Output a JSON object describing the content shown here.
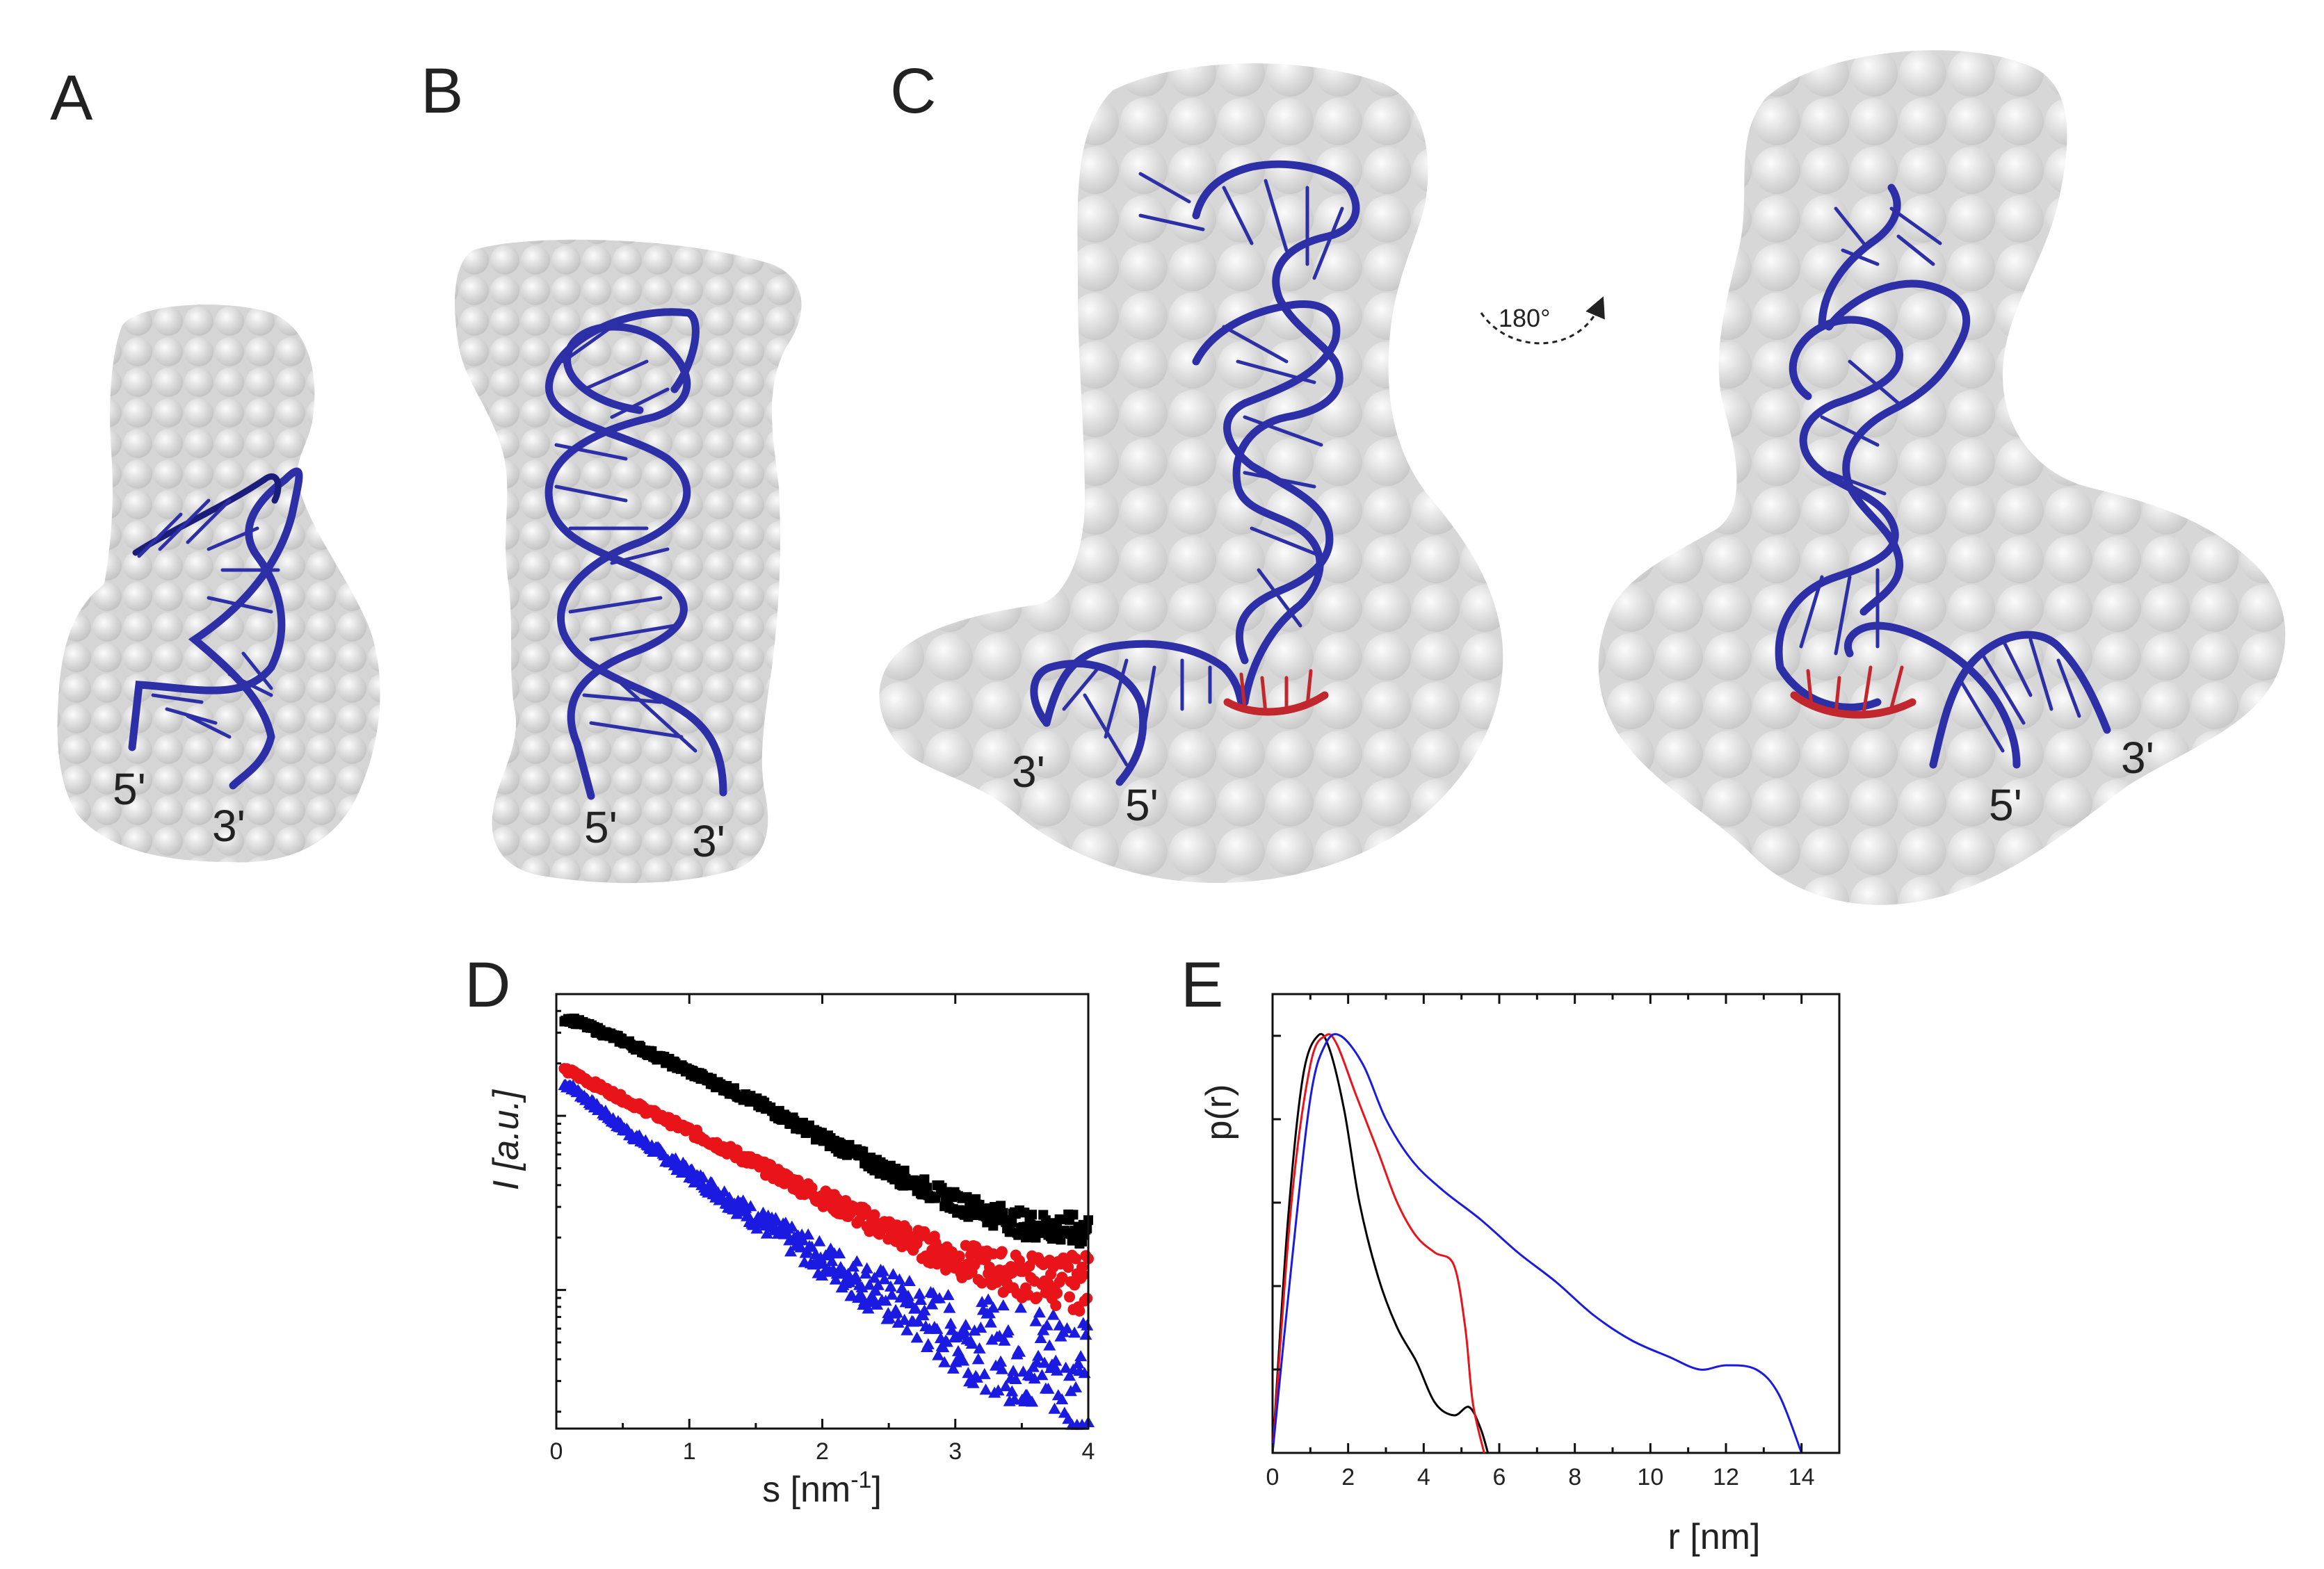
{
  "panels": {
    "A": {
      "letter": "A",
      "end_5": "5'",
      "end_3": "3'"
    },
    "B": {
      "letter": "B",
      "end_5": "5'",
      "end_3": "3'"
    },
    "C": {
      "letter": "C",
      "left_end_3": "3'",
      "left_end_5": "5'",
      "rotation_label": "180°",
      "right_end_5": "5'",
      "right_end_3": "3'"
    },
    "D": {
      "letter": "D"
    },
    "E": {
      "letter": "E"
    }
  },
  "colors": {
    "envelope": "#d4d4d4",
    "rna": "#2c2fa6",
    "highlight": "#c1272d",
    "series_black": "#000000",
    "series_red": "#e8141a",
    "series_blue": "#1a1ae0"
  },
  "chart_data": [
    {
      "type": "scatter",
      "panel": "D",
      "xlabel": "s [nm",
      "xlabel_sup": "-1",
      "xlabel_close": "]",
      "ylabel": "I [a.u.]",
      "yscale": "log",
      "xlim": [
        0,
        4
      ],
      "ylim": [
        0.0016,
        0.5
      ],
      "xticks": [
        "0",
        "1",
        "2",
        "3",
        "4"
      ],
      "x": [
        0.1,
        0.5,
        1.0,
        1.5,
        2.0,
        2.5,
        3.0,
        3.5,
        3.9
      ],
      "series": [
        {
          "color": "#000000",
          "marker": "square",
          "values": [
            0.36,
            0.27,
            0.18,
            0.12,
            0.075,
            0.048,
            0.032,
            0.024,
            0.022
          ]
        },
        {
          "color": "#e8141a",
          "marker": "circle",
          "values": [
            0.18,
            0.125,
            0.082,
            0.053,
            0.034,
            0.022,
            0.015,
            0.012,
            0.011
          ]
        },
        {
          "color": "#1a1ae0",
          "marker": "triangle",
          "values": [
            0.15,
            0.085,
            0.047,
            0.026,
            0.015,
            0.009,
            0.0055,
            0.0042,
            0.0038
          ]
        }
      ]
    },
    {
      "type": "line",
      "panel": "E",
      "xlabel": "r [nm]",
      "ylabel": "p(r)",
      "xlim": [
        0,
        15
      ],
      "ylim": [
        0,
        1.1
      ],
      "xticks": [
        "0",
        "2",
        "4",
        "6",
        "8",
        "10",
        "12",
        "14"
      ],
      "series": [
        {
          "color": "#000000",
          "x": [
            0,
            0.4,
            0.8,
            1.2,
            1.5,
            1.9,
            2.3,
            2.8,
            3.3,
            3.8,
            4.3,
            4.8,
            5.2,
            5.5,
            5.7
          ],
          "values": [
            0,
            0.55,
            0.9,
            1.0,
            0.97,
            0.82,
            0.6,
            0.42,
            0.3,
            0.22,
            0.12,
            0.09,
            0.11,
            0.06,
            0
          ]
        },
        {
          "color": "#e8141a",
          "x": [
            0,
            0.5,
            1.0,
            1.4,
            1.7,
            2.2,
            2.8,
            3.3,
            3.8,
            4.3,
            4.8,
            5.1,
            5.3,
            5.6
          ],
          "values": [
            0,
            0.6,
            0.93,
            1.0,
            0.98,
            0.86,
            0.72,
            0.6,
            0.52,
            0.48,
            0.45,
            0.3,
            0.12,
            0
          ]
        },
        {
          "color": "#1a1ae0",
          "x": [
            0,
            0.5,
            1.0,
            1.4,
            1.8,
            2.4,
            3.0,
            3.7,
            4.5,
            5.5,
            6.5,
            7.5,
            8.5,
            9.5,
            10.5,
            11.3,
            12.0,
            12.8,
            13.4,
            14.0
          ],
          "values": [
            0,
            0.45,
            0.85,
            0.98,
            1.0,
            0.93,
            0.8,
            0.7,
            0.63,
            0.56,
            0.48,
            0.41,
            0.33,
            0.27,
            0.23,
            0.2,
            0.21,
            0.2,
            0.14,
            0
          ]
        }
      ]
    }
  ]
}
